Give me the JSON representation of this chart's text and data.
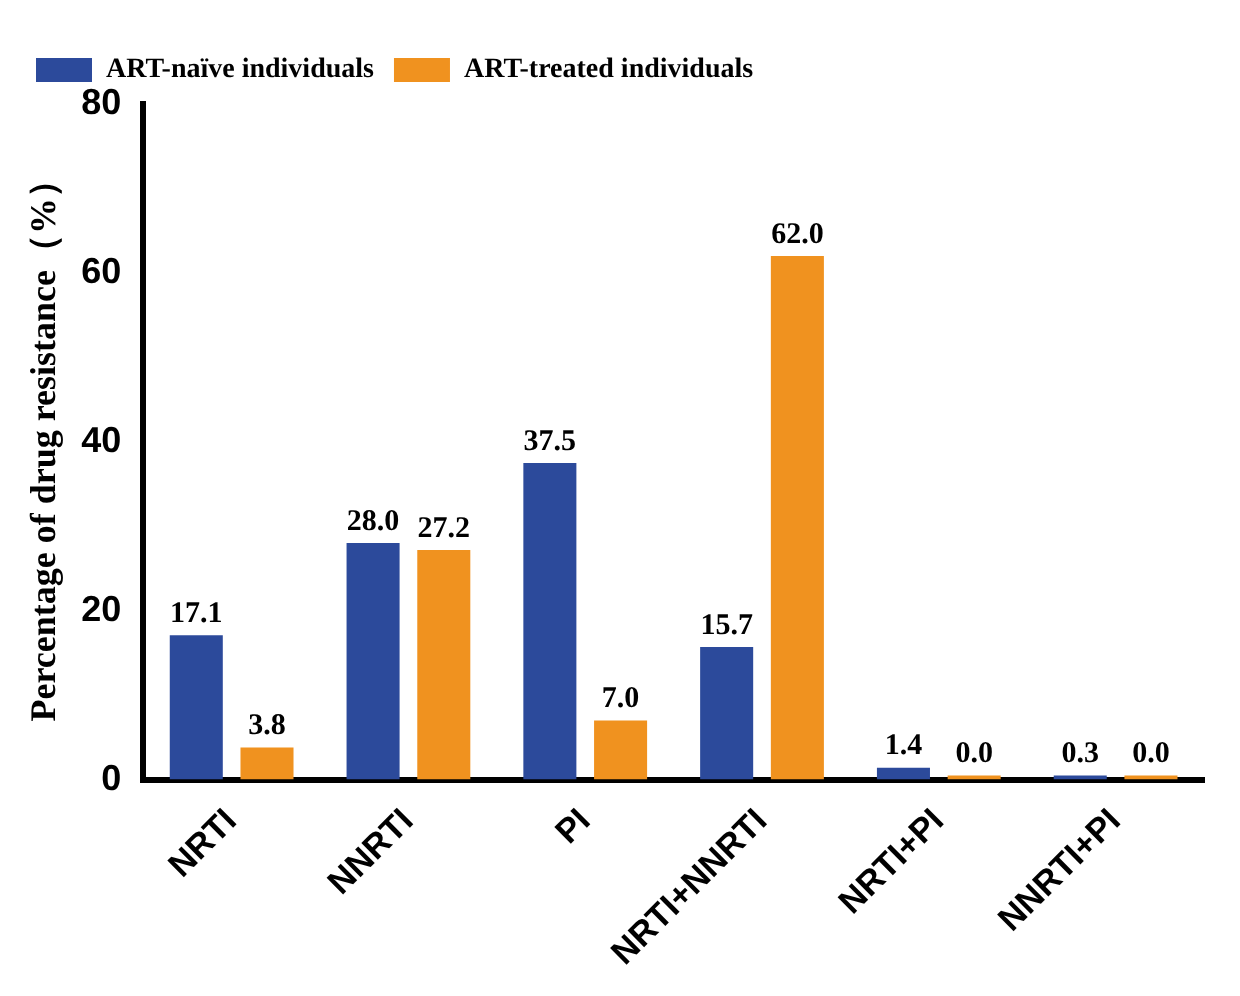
{
  "chart_data": {
    "type": "bar",
    "ylabel": "Percentage of drug resistance（%）",
    "categories": [
      "NRTI",
      "NNRTI",
      "PI",
      "NRTI+NNRTI",
      "NRTI+PI",
      "NNRTI+PI"
    ],
    "series": [
      {
        "name": "ART-naïve individuals",
        "color": "#2c4a9b",
        "values": [
          17.1,
          28.0,
          37.5,
          15.7,
          1.4,
          0.3
        ],
        "value_labels": [
          "17.1",
          "28.0",
          "37.5",
          "15.7",
          "1.4",
          "0.3"
        ]
      },
      {
        "name": "ART-treated individuals",
        "color": "#f0921f",
        "values": [
          3.8,
          27.2,
          7.0,
          62.0,
          0.0,
          0.0
        ],
        "value_labels": [
          "3.8",
          "27.2",
          "7.0",
          "62.0",
          "0.0",
          "0.0"
        ]
      }
    ],
    "ylim": [
      0,
      80
    ],
    "yticks": [
      0,
      20,
      40,
      60,
      80
    ],
    "grid": false,
    "legend": "top left"
  }
}
